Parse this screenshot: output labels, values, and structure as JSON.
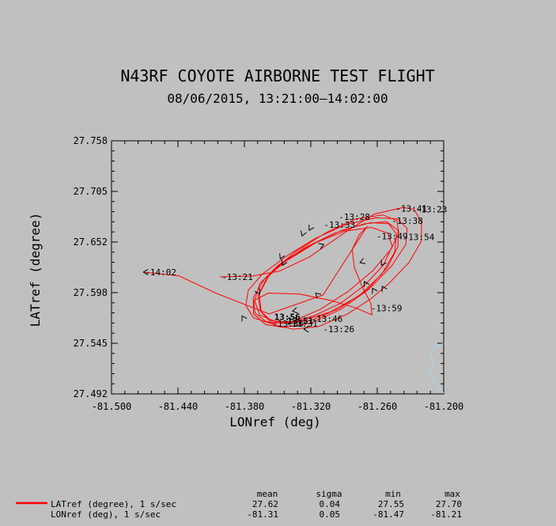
{
  "chart_data": {
    "type": "line",
    "title": "N43RF COYOTE AIRBORNE TEST FLIGHT",
    "subtitle": "08/06/2015, 13:21:00–14:02:00",
    "xlabel": "LONref (deg)",
    "ylabel": "LATref (degree)",
    "xlim": [
      -81.5,
      -81.2
    ],
    "ylim": [
      27.492,
      27.758
    ],
    "x_ticks": [
      "-81.500",
      "-81.440",
      "-81.380",
      "-81.320",
      "-81.260",
      "-81.200"
    ],
    "y_ticks": [
      "27.758",
      "27.705",
      "27.652",
      "27.598",
      "27.545",
      "27.492"
    ],
    "grid": false,
    "colors": {
      "track": "#ff0000",
      "coast": "#a8d8f0",
      "background": "#c0c0c0"
    },
    "coastline": [
      [
        -81.2,
        27.545
      ],
      [
        -81.208,
        27.542
      ],
      [
        -81.212,
        27.535
      ],
      [
        -81.209,
        27.525
      ],
      [
        -81.213,
        27.515
      ],
      [
        -81.208,
        27.505
      ],
      [
        -81.203,
        27.497
      ],
      [
        -81.2,
        27.493
      ]
    ],
    "series": [
      {
        "name": "LATref (degree), 1 s/sec",
        "points": [
          [
            -81.402,
            27.615
          ],
          [
            -81.3717,
            27.616
          ],
          [
            -81.3483,
            27.621
          ],
          [
            -81.3212,
            27.636
          ],
          [
            -81.2862,
            27.664
          ],
          [
            -81.2625,
            27.681
          ],
          [
            -81.2364,
            27.688
          ],
          [
            -81.2267,
            27.686
          ],
          [
            -81.2199,
            27.672
          ],
          [
            -81.2204,
            27.652
          ],
          [
            -81.2314,
            27.63
          ],
          [
            -81.2486,
            27.609
          ],
          [
            -81.2657,
            27.592
          ],
          [
            -81.2868,
            27.576
          ],
          [
            -81.3124,
            27.563
          ],
          [
            -81.336,
            27.56
          ],
          [
            -81.3544,
            27.565
          ],
          [
            -81.3647,
            27.578
          ],
          [
            -81.3666,
            27.597
          ],
          [
            -81.3566,
            27.619
          ],
          [
            -81.3345,
            27.641
          ],
          [
            -81.3054,
            27.662
          ],
          [
            -81.2789,
            27.676
          ],
          [
            -81.2548,
            27.68
          ],
          [
            -81.2422,
            27.674
          ],
          [
            -81.2406,
            27.661
          ],
          [
            -81.2476,
            27.644
          ],
          [
            -81.2636,
            27.622
          ],
          [
            -81.2859,
            27.6
          ],
          [
            -81.3112,
            27.581
          ],
          [
            -81.3373,
            27.568
          ],
          [
            -81.3562,
            27.566
          ],
          [
            -81.3718,
            27.572
          ],
          [
            -81.3787,
            27.585
          ],
          [
            -81.3765,
            27.601
          ],
          [
            -81.3637,
            27.618
          ],
          [
            -81.3417,
            27.637
          ],
          [
            -81.3167,
            27.655
          ],
          [
            -81.2882,
            27.67
          ],
          [
            -81.2616,
            27.677
          ],
          [
            -81.242,
            27.676
          ],
          [
            -81.233,
            27.666
          ],
          [
            -81.2342,
            27.649
          ],
          [
            -81.2467,
            27.627
          ],
          [
            -81.2675,
            27.602
          ],
          [
            -81.2927,
            27.581
          ],
          [
            -81.3211,
            27.566
          ],
          [
            -81.3454,
            27.562
          ],
          [
            -81.3609,
            27.565
          ],
          [
            -81.3718,
            27.576
          ],
          [
            -81.3719,
            27.593
          ],
          [
            -81.3617,
            27.613
          ],
          [
            -81.3419,
            27.632
          ],
          [
            -81.3153,
            27.651
          ],
          [
            -81.2895,
            27.663
          ],
          [
            -81.2654,
            27.667
          ],
          [
            -81.2504,
            27.661
          ],
          [
            -81.2466,
            27.647
          ],
          [
            -81.2547,
            27.627
          ],
          [
            -81.2716,
            27.606
          ],
          [
            -81.2934,
            27.587
          ],
          [
            -81.3175,
            27.574
          ],
          [
            -81.3401,
            27.567
          ],
          [
            -81.3559,
            27.569
          ],
          [
            -81.3654,
            27.579
          ],
          [
            -81.3676,
            27.595
          ],
          [
            -81.3597,
            27.614
          ],
          [
            -81.3419,
            27.633
          ],
          [
            -81.3177,
            27.65
          ],
          [
            -81.2917,
            27.664
          ],
          [
            -81.2662,
            27.672
          ],
          [
            -81.2498,
            27.671
          ],
          [
            -81.2425,
            27.66
          ],
          [
            -81.2443,
            27.641
          ],
          [
            -81.2558,
            27.618
          ],
          [
            -81.2765,
            27.595
          ],
          [
            -81.3026,
            27.578
          ],
          [
            -81.3304,
            27.568
          ],
          [
            -81.3518,
            27.568
          ],
          [
            -81.3662,
            27.575
          ],
          [
            -81.3708,
            27.59
          ],
          [
            -81.3661,
            27.608
          ],
          [
            -81.3497,
            27.627
          ],
          [
            -81.3251,
            27.646
          ],
          [
            -81.2983,
            27.661
          ],
          [
            -81.271,
            27.671
          ],
          [
            -81.2516,
            27.673
          ],
          [
            -81.2413,
            27.664
          ],
          [
            -81.2412,
            27.647
          ],
          [
            -81.2508,
            27.625
          ],
          [
            -81.2695,
            27.601
          ],
          [
            -81.2941,
            27.582
          ],
          [
            -81.3202,
            27.569
          ],
          [
            -81.3435,
            27.566
          ],
          [
            -81.3606,
            27.568
          ],
          [
            -81.3704,
            27.577
          ],
          [
            -81.3716,
            27.59
          ],
          [
            -81.3583,
            27.598
          ],
          [
            -81.3303,
            27.597
          ],
          [
            -81.3012,
            27.59
          ],
          [
            -81.2786,
            27.582
          ],
          [
            -81.2648,
            27.575
          ],
          [
            -81.2658,
            27.587
          ],
          [
            -81.2737,
            27.605
          ],
          [
            -81.2807,
            27.625
          ],
          [
            -81.2826,
            27.644
          ],
          [
            -81.2764,
            27.659
          ],
          [
            -81.2692,
            27.668
          ],
          [
            -81.3089,
            27.596
          ],
          [
            -81.3578,
            27.576
          ],
          [
            -81.4059,
            27.598
          ],
          [
            -81.439,
            27.616
          ],
          [
            -81.4712,
            27.62
          ]
        ]
      }
    ],
    "time_labels": [
      {
        "text": "-14:02",
        "x": -81.4712,
        "y": 27.62
      },
      {
        "text": "-13:21",
        "x": -81.402,
        "y": 27.615
      },
      {
        "text": "-13:23",
        "x": -81.2267,
        "y": 27.686
      },
      {
        "text": "-13:41",
        "x": -81.2447,
        "y": 27.687
      },
      {
        "text": "-13:28",
        "x": -81.2962,
        "y": 27.678
      },
      {
        "text": "-13:38",
        "x": -81.2484,
        "y": 27.674
      },
      {
        "text": "-13:33",
        "x": -81.3097,
        "y": 27.67
      },
      {
        "text": "-13:49",
        "x": -81.2622,
        "y": 27.658
      },
      {
        "text": "-13:54",
        "x": -81.2381,
        "y": 27.657
      },
      {
        "text": "-13:59",
        "x": -81.2673,
        "y": 27.582
      },
      {
        "text": "-13:46",
        "x": -81.3211,
        "y": 27.571
      },
      {
        "text": "-13:26",
        "x": -81.3104,
        "y": 27.56
      },
      {
        "text": "-13:31",
        "x": -81.3435,
        "y": 27.566
      },
      {
        "text": "-13:36",
        "x": -81.3562,
        "y": 27.566
      },
      {
        "text": "13:56",
        "x": -81.3502,
        "y": 27.573
      },
      {
        "text": "13:51",
        "x": -81.3385,
        "y": 27.569
      }
    ],
    "direction_arrows": [
      {
        "x": -81.4712,
        "y": 27.62,
        "angle": 180
      },
      {
        "x": -81.3083,
        "y": 27.649,
        "angle": 20
      },
      {
        "x": -81.3279,
        "y": 27.658,
        "angle": 250
      },
      {
        "x": -81.3215,
        "y": 27.664,
        "angle": 240
      },
      {
        "x": -81.3476,
        "y": 27.634,
        "angle": 245
      },
      {
        "x": -81.3456,
        "y": 27.627,
        "angle": 245
      },
      {
        "x": -81.3663,
        "y": 27.597,
        "angle": 300
      },
      {
        "x": -81.3821,
        "y": 27.574,
        "angle": 120
      },
      {
        "x": -81.3156,
        "y": 27.598,
        "angle": 135
      },
      {
        "x": -81.3365,
        "y": 27.579,
        "angle": 190
      },
      {
        "x": -81.3263,
        "y": 27.56,
        "angle": 180
      },
      {
        "x": -81.2756,
        "y": 27.63,
        "angle": 200
      },
      {
        "x": -81.2562,
        "y": 27.627,
        "angle": 240
      },
      {
        "x": -81.2717,
        "y": 27.61,
        "angle": 120
      },
      {
        "x": -81.2643,
        "y": 27.603,
        "angle": 120
      },
      {
        "x": -81.2555,
        "y": 27.605,
        "angle": 120
      }
    ]
  },
  "legend": {
    "headers": [
      "mean",
      "sigma",
      "min",
      "max"
    ],
    "rows": [
      {
        "label": "LATref (degree), 1 s/sec",
        "mean": "27.62",
        "sigma": "0.04",
        "min": "27.55",
        "max": "27.70"
      },
      {
        "label": "LONref (deg), 1 s/sec",
        "mean": "-81.31",
        "sigma": "0.05",
        "min": "-81.47",
        "max": "-81.21"
      }
    ]
  }
}
